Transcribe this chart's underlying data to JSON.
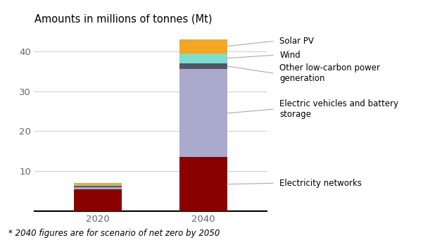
{
  "categories": [
    "2020",
    "2040"
  ],
  "series": {
    "Electricity networks": [
      5.5,
      13.5
    ],
    "Electric vehicles and battery storage": [
      0.5,
      22.0
    ],
    "Other low-carbon power generation": [
      0.3,
      1.5
    ],
    "Wind": [
      0.3,
      2.5
    ],
    "Solar PV": [
      0.4,
      3.5
    ]
  },
  "colors": {
    "Electricity networks": "#8B0000",
    "Electric vehicles and battery storage": "#AAAACC",
    "Other low-carbon power generation": "#555566",
    "Wind": "#7DDDD0",
    "Solar PV": "#F5A623"
  },
  "bar_order": [
    "Electricity networks",
    "Electric vehicles and battery storage",
    "Other low-carbon power generation",
    "Wind",
    "Solar PV"
  ],
  "legend_order": [
    "Solar PV",
    "Wind",
    "Other low-carbon power generation",
    "Electric vehicles and battery storage",
    "Electricity networks"
  ],
  "title": "Amounts in millions of tonnes (Mt)",
  "footnote": "* 2040 figures are for scenario of net zero by 2050",
  "ylim": [
    0,
    45
  ],
  "yticks": [
    10,
    20,
    30,
    40
  ],
  "bar_width": 0.45,
  "title_fontsize": 10.5,
  "footnote_fontsize": 8.5,
  "tick_fontsize": 9.5,
  "legend_fontsize": 8.5,
  "annotation_texts": {
    "Solar PV": "Solar PV",
    "Wind": "Wind",
    "Other low-carbon power generation": "Other low-carbon power\ngeneration",
    "Electric vehicles and battery storage": "Electric vehicles and battery\nstorage",
    "Electricity networks": "Electricity networks"
  },
  "text_y_positions": {
    "Solar PV": 42.5,
    "Wind": 39.0,
    "Other low-carbon power generation": 34.5,
    "Electric vehicles and battery storage": 25.5,
    "Electricity networks": 7.0
  }
}
